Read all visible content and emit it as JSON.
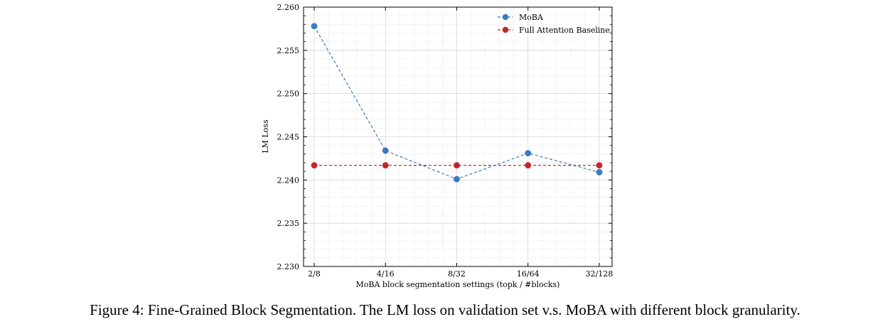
{
  "caption": "Figure 4: Fine-Grained Block Segmentation. The LM loss on validation set v.s. MoBA with different block granularity.",
  "colors": {
    "moba": "#3a7bbf",
    "baseline": "#c0282a"
  },
  "chart_data": {
    "type": "line",
    "title": "",
    "xlabel": "MoBA block segmentation settings (topk / #blocks)",
    "ylabel": "LM Loss",
    "categories": [
      "2/8",
      "4/16",
      "8/32",
      "16/64",
      "32/128"
    ],
    "ylim": [
      2.23,
      2.26
    ],
    "yticks": [
      "2.230",
      "2.235",
      "2.240",
      "2.245",
      "2.250",
      "2.255",
      "2.260"
    ],
    "grid": true,
    "legend_position": "top-right",
    "series": [
      {
        "name": "MoBA",
        "values": [
          2.2578,
          2.2434,
          2.2401,
          2.2431,
          2.2409
        ],
        "line_style": "dashed",
        "marker": "circle"
      },
      {
        "name": "Full Attention Baseline",
        "values": [
          2.2417,
          2.2417,
          2.2417,
          2.2417,
          2.2417
        ],
        "line_style": "dashed",
        "marker": "circle"
      }
    ]
  }
}
